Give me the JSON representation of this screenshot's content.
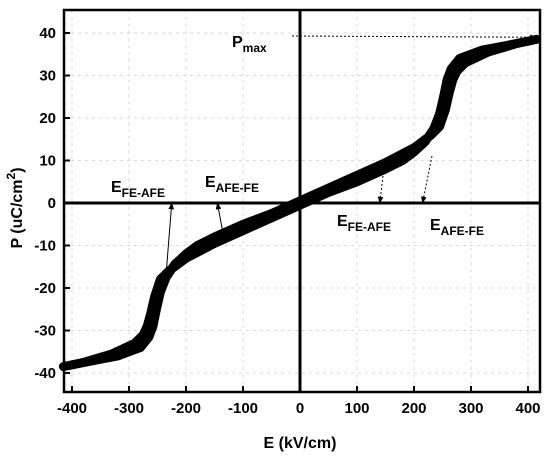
{
  "chart_data": {
    "type": "line",
    "xlabel": "E (kV/cm)",
    "ylabel": {
      "main": "P (uC/cm",
      "sup": "2",
      "end": ")"
    },
    "xlim": [
      -420,
      420
    ],
    "ylim": [
      -42,
      42
    ],
    "xticks": [
      -400,
      -300,
      -200,
      -100,
      0,
      100,
      200,
      300,
      400
    ],
    "yticks": [
      -40,
      -30,
      -20,
      -10,
      0,
      10,
      20,
      30,
      40
    ],
    "grid": true,
    "series": [
      {
        "color": "#000000",
        "x": [
          415,
          380,
          330,
          290,
          275,
          268,
          262,
          255,
          245,
          230,
          200,
          150,
          100,
          50,
          0,
          -50,
          -100,
          -150,
          -180,
          -200,
          -220,
          -235,
          -245,
          -252,
          -258,
          -265,
          -280,
          -320,
          -360,
          -415,
          -380,
          -330,
          -290,
          -275,
          -268,
          -262,
          -255,
          -245,
          -230,
          -200,
          -150,
          -100,
          -50,
          0,
          50,
          100,
          150,
          180,
          200,
          220,
          235,
          245,
          252,
          258,
          265,
          280,
          320,
          360,
          415
        ],
        "y": [
          38.5,
          37.5,
          35.5,
          33,
          31,
          29,
          26,
          22,
          18,
          16,
          13,
          9.5,
          6.5,
          3.5,
          0.5,
          -2.5,
          -5,
          -8,
          -10,
          -12,
          -14.5,
          -17.5,
          -21,
          -25,
          -29,
          -31.5,
          -34,
          -36,
          -37,
          -38.5,
          -37.5,
          -35.5,
          -33,
          -31,
          -29,
          -26,
          -22,
          -18,
          -16,
          -13,
          -9.5,
          -6.5,
          -3.5,
          -0.5,
          2.5,
          5,
          8,
          10,
          12,
          14.5,
          17.5,
          21,
          25,
          29,
          31.5,
          34,
          36,
          37,
          38.5
        ]
      }
    ],
    "annotations": [
      {
        "id": "pmax",
        "main": "P",
        "sub": "max",
        "to": [
          415,
          39
        ]
      },
      {
        "id": "e-fe-afe-left",
        "main": "E",
        "sub": "FE-AFE",
        "to": [
          -225,
          0
        ]
      },
      {
        "id": "e-afe-fe-left",
        "main": "E",
        "sub": "AFE-FE",
        "to": [
          -145,
          0
        ]
      },
      {
        "id": "e-fe-afe-right",
        "main": "E",
        "sub": "FE-AFE",
        "to": [
          140,
          0
        ]
      },
      {
        "id": "e-afe-fe-right",
        "main": "E",
        "sub": "AFE-FE",
        "to": [
          215,
          0
        ]
      }
    ]
  }
}
